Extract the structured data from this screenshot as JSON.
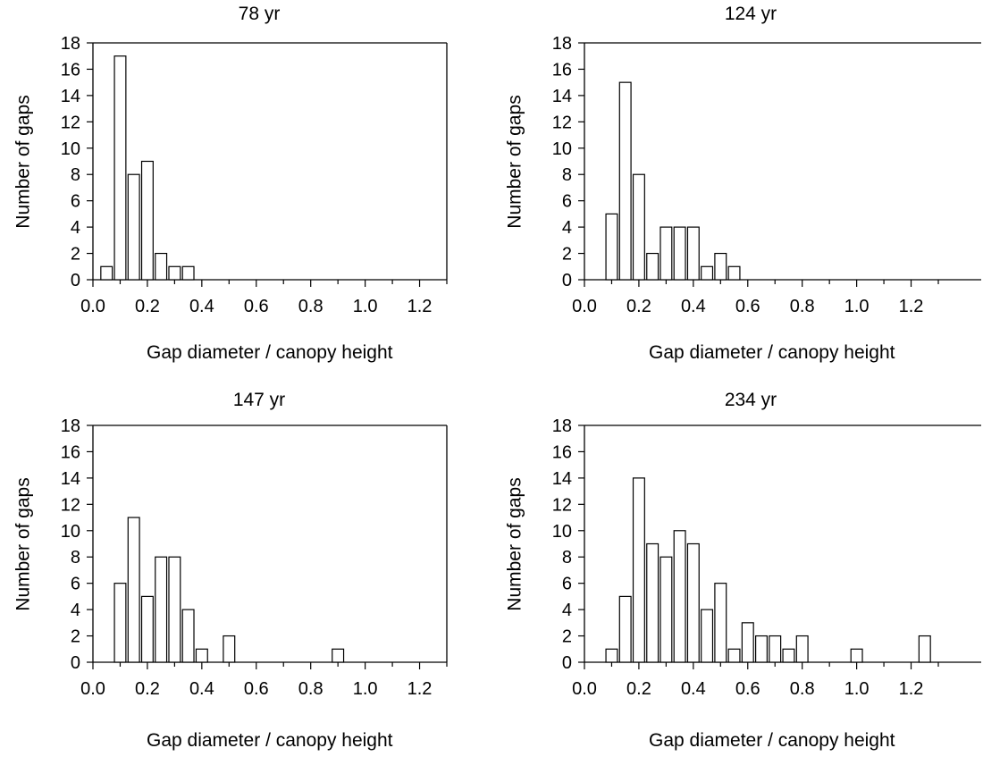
{
  "chart_data": [
    {
      "type": "bar",
      "title": "78 yr",
      "xlabel": "Gap diameter / canopy height",
      "ylabel": "Number of gaps",
      "xlim": [
        0.0,
        1.3
      ],
      "ylim": [
        0,
        18
      ],
      "xticks": [
        "0.0",
        "0.2",
        "0.4",
        "0.6",
        "0.8",
        "1.0",
        "1.2"
      ],
      "yticks": [
        "0",
        "2",
        "4",
        "6",
        "8",
        "10",
        "12",
        "14",
        "16",
        "18"
      ],
      "bin_width": 0.05,
      "x": [
        0.05,
        0.1,
        0.15,
        0.2,
        0.25,
        0.3,
        0.35
      ],
      "values": [
        1,
        17,
        8,
        9,
        2,
        1,
        1
      ]
    },
    {
      "type": "bar",
      "title": "124 yr",
      "xlabel": "Gap diameter / canopy height",
      "ylabel": "Number of gaps",
      "xlim": [
        0.0,
        1.3
      ],
      "ylim": [
        0,
        18
      ],
      "xticks": [
        "0.0",
        "0.2",
        "0.4",
        "0.6",
        "0.8",
        "1.0",
        "1.2"
      ],
      "yticks": [
        "0",
        "2",
        "4",
        "6",
        "8",
        "10",
        "12",
        "14",
        "16",
        "18"
      ],
      "bin_width": 0.05,
      "x": [
        0.1,
        0.15,
        0.2,
        0.25,
        0.3,
        0.35,
        0.4,
        0.45,
        0.5,
        0.55
      ],
      "values": [
        5,
        15,
        8,
        2,
        4,
        4,
        4,
        1,
        2,
        1
      ]
    },
    {
      "type": "bar",
      "title": "147 yr",
      "xlabel": "Gap diameter / canopy height",
      "ylabel": "Number of gaps",
      "xlim": [
        0.0,
        1.3
      ],
      "ylim": [
        0,
        18
      ],
      "xticks": [
        "0.0",
        "0.2",
        "0.4",
        "0.6",
        "0.8",
        "1.0",
        "1.2"
      ],
      "yticks": [
        "0",
        "2",
        "4",
        "6",
        "8",
        "10",
        "12",
        "14",
        "16",
        "18"
      ],
      "bin_width": 0.05,
      "x": [
        0.1,
        0.15,
        0.2,
        0.25,
        0.3,
        0.35,
        0.4,
        0.5,
        0.9
      ],
      "values": [
        6,
        11,
        5,
        8,
        8,
        4,
        1,
        2,
        1
      ]
    },
    {
      "type": "bar",
      "title": "234 yr",
      "xlabel": "Gap diameter / canopy height",
      "ylabel": "Number of gaps",
      "xlim": [
        0.0,
        1.3
      ],
      "ylim": [
        0,
        18
      ],
      "xticks": [
        "0.0",
        "0.2",
        "0.4",
        "0.6",
        "0.8",
        "1.0",
        "1.2"
      ],
      "yticks": [
        "0",
        "2",
        "4",
        "6",
        "8",
        "10",
        "12",
        "14",
        "16",
        "18"
      ],
      "bin_width": 0.05,
      "x": [
        0.1,
        0.15,
        0.2,
        0.25,
        0.3,
        0.35,
        0.4,
        0.45,
        0.5,
        0.55,
        0.6,
        0.65,
        0.7,
        0.75,
        0.8,
        1.0,
        1.25
      ],
      "values": [
        1,
        5,
        14,
        9,
        8,
        10,
        9,
        4,
        6,
        1,
        3,
        2,
        2,
        1,
        2,
        1,
        2
      ]
    }
  ]
}
